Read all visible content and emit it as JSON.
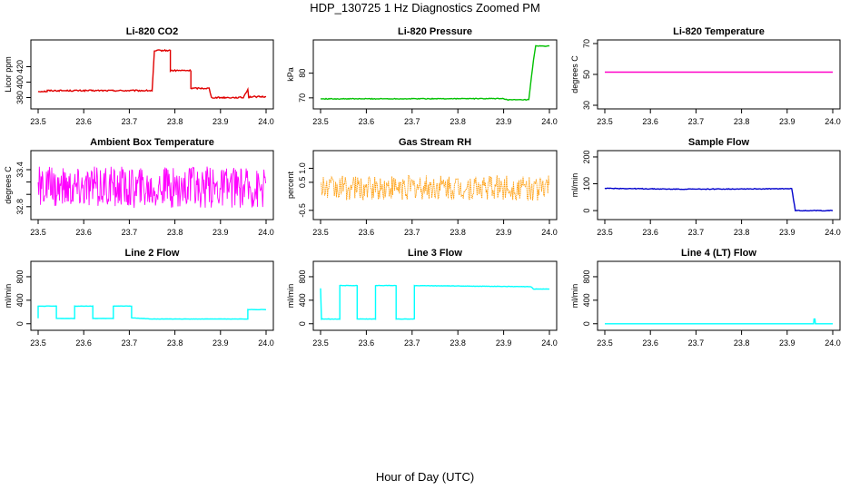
{
  "figure": {
    "title": "HDP_130725  1 Hz Diagnostics Zoomed PM",
    "xlabel": "Hour of Day (UTC)"
  },
  "chart_data": [
    {
      "type": "line",
      "title": "Li-820 CO2",
      "xlabel": "",
      "ylabel": "Licor ppm",
      "xlim": [
        23.5,
        24.0
      ],
      "ylim": [
        370,
        450
      ],
      "x_ticks": [
        "23.5",
        "23.6",
        "23.7",
        "23.8",
        "23.9",
        "24.0"
      ],
      "y_ticks": [
        "380",
        "400",
        "420"
      ],
      "y_tick_values": [
        380,
        400,
        420
      ],
      "grid": false,
      "series": [
        {
          "color": "#e00000",
          "noise": 0.9,
          "x": [
            23.5,
            23.52,
            23.52,
            23.75,
            23.755,
            23.765,
            23.78,
            23.79,
            23.79,
            23.835,
            23.835,
            23.875,
            23.88,
            23.95,
            23.96,
            23.962,
            23.965,
            24.0
          ],
          "y": [
            388,
            388,
            389,
            389,
            440,
            441,
            441,
            441,
            415,
            415,
            392,
            392,
            380,
            380,
            391,
            380,
            381,
            381
          ]
        }
      ]
    },
    {
      "type": "line",
      "title": "Li-820 Pressure",
      "xlabel": "",
      "ylabel": "kPa",
      "xlim": [
        23.5,
        24.0
      ],
      "ylim": [
        67,
        92
      ],
      "x_ticks": [
        "23.5",
        "23.6",
        "23.7",
        "23.8",
        "23.9",
        "24.0"
      ],
      "y_ticks": [
        "70",
        "80"
      ],
      "y_tick_values": [
        70,
        80
      ],
      "grid": false,
      "series": [
        {
          "color": "#00c000",
          "noise": 0.15,
          "x": [
            23.5,
            23.9,
            23.91,
            23.955,
            23.965,
            23.97,
            24.0
          ],
          "y": [
            69.6,
            69.7,
            69.2,
            69.2,
            85,
            91,
            91
          ]
        }
      ]
    },
    {
      "type": "line",
      "title": "Li-820 Temperature",
      "xlabel": "",
      "ylabel": "degrees C",
      "xlim": [
        23.5,
        24.0
      ],
      "ylim": [
        30,
        70
      ],
      "x_ticks": [
        "23.5",
        "23.6",
        "23.7",
        "23.8",
        "23.9",
        "24.0"
      ],
      "y_ticks": [
        "30",
        "50",
        "70"
      ],
      "y_tick_values": [
        30,
        50,
        70
      ],
      "grid": false,
      "series": [
        {
          "color": "#ff00c8",
          "noise": 0,
          "x": [
            23.5,
            24.0
          ],
          "y": [
            51.5,
            51.5
          ]
        }
      ]
    },
    {
      "type": "line",
      "title": "Ambient Box Temperature",
      "xlabel": "",
      "ylabel": "degrees C",
      "xlim": [
        23.5,
        24.0
      ],
      "ylim": [
        32.65,
        33.65
      ],
      "x_ticks": [
        "23.5",
        "23.6",
        "23.7",
        "23.8",
        "23.9",
        "24.0"
      ],
      "y_ticks": [
        "32.8",
        "33.0",
        "33.2",
        "33.4"
      ],
      "y_tick_values": [
        32.8,
        33.0,
        33.2,
        33.4
      ],
      "y_tick_labels_shown": [
        "32.8",
        "33.4"
      ],
      "grid": false,
      "series": [
        {
          "color": "#ff00ff",
          "noise_band": [
            32.78,
            33.45
          ],
          "step": 0.0013,
          "x": [
            23.5,
            24.0
          ],
          "y": [
            33.1,
            33.1
          ]
        }
      ]
    },
    {
      "type": "line",
      "title": "Gas Stream RH",
      "xlabel": "",
      "ylabel": "percent",
      "xlim": [
        23.5,
        24.0
      ],
      "ylim": [
        -0.7,
        1.5
      ],
      "x_ticks": [
        "23.5",
        "23.6",
        "23.7",
        "23.8",
        "23.9",
        "24.0"
      ],
      "y_ticks": [
        "-0.5",
        "0.5",
        "1.0"
      ],
      "y_tick_values": [
        -0.5,
        0.5,
        1.0
      ],
      "grid": false,
      "series": [
        {
          "color": "#ff9900",
          "noise_band": [
            -0.15,
            0.75
          ],
          "step": 0.0015,
          "dotted": true,
          "x": [
            23.5,
            24.0
          ],
          "y": [
            0.25,
            0.25
          ]
        }
      ]
    },
    {
      "type": "line",
      "title": "Sample Flow",
      "xlabel": "",
      "ylabel": "ml/min",
      "xlim": [
        23.5,
        24.0
      ],
      "ylim": [
        -20,
        210
      ],
      "x_ticks": [
        "23.5",
        "23.6",
        "23.7",
        "23.8",
        "23.9",
        "24.0"
      ],
      "y_ticks": [
        "0",
        "100",
        "200"
      ],
      "y_tick_values": [
        0,
        100,
        200
      ],
      "grid": false,
      "series": [
        {
          "color": "#0000cc",
          "noise": 1.3,
          "x": [
            23.5,
            23.56,
            23.6,
            23.65,
            23.72,
            23.8,
            23.86,
            23.91,
            23.918,
            24.0
          ],
          "y": [
            83,
            82,
            81,
            80,
            80,
            81,
            81,
            82,
            0,
            0
          ]
        }
      ]
    },
    {
      "type": "line",
      "title": "Line 2 Flow",
      "xlabel": "",
      "ylabel": "ml/min",
      "xlim": [
        23.5,
        24.0
      ],
      "ylim": [
        -50,
        1000
      ],
      "x_ticks": [
        "23.5",
        "23.6",
        "23.7",
        "23.8",
        "23.9",
        "24.0"
      ],
      "y_ticks": [
        "0",
        "400",
        "800"
      ],
      "y_tick_values": [
        0,
        400,
        800
      ],
      "grid": false,
      "series": [
        {
          "color": "#00ffff",
          "noise": 2,
          "x": [
            23.5,
            23.5,
            23.54,
            23.54,
            23.58,
            23.58,
            23.62,
            23.62,
            23.665,
            23.665,
            23.705,
            23.705,
            23.75,
            23.96,
            23.96,
            24.0
          ],
          "y": [
            90,
            300,
            300,
            90,
            90,
            300,
            300,
            90,
            90,
            300,
            300,
            100,
            80,
            80,
            240,
            240
          ]
        }
      ]
    },
    {
      "type": "line",
      "title": "Line 3 Flow",
      "xlabel": "",
      "ylabel": "ml/min",
      "xlim": [
        23.5,
        24.0
      ],
      "ylim": [
        -50,
        1000
      ],
      "x_ticks": [
        "23.5",
        "23.6",
        "23.7",
        "23.8",
        "23.9",
        "24.0"
      ],
      "y_ticks": [
        "0",
        "400",
        "800"
      ],
      "y_tick_values": [
        0,
        400,
        800
      ],
      "grid": false,
      "series": [
        {
          "color": "#00ffff",
          "noise": 3,
          "x": [
            23.5,
            23.5,
            23.502,
            23.542,
            23.542,
            23.58,
            23.58,
            23.62,
            23.62,
            23.665,
            23.665,
            23.705,
            23.705,
            23.96,
            23.965,
            24.0
          ],
          "y": [
            600,
            600,
            80,
            80,
            650,
            650,
            80,
            80,
            650,
            650,
            80,
            80,
            650,
            630,
            590,
            590
          ]
        }
      ]
    },
    {
      "type": "line",
      "title": "Line 4 (LT) Flow",
      "xlabel": "",
      "ylabel": "ml/min",
      "xlim": [
        23.5,
        24.0
      ],
      "ylim": [
        -50,
        1000
      ],
      "x_ticks": [
        "23.5",
        "23.6",
        "23.7",
        "23.8",
        "23.9",
        "24.0"
      ],
      "y_ticks": [
        "0",
        "400",
        "800"
      ],
      "y_tick_values": [
        0,
        400,
        800
      ],
      "grid": false,
      "series": [
        {
          "color": "#00ffff",
          "noise": 0,
          "x": [
            23.5,
            23.958,
            23.959,
            23.961,
            23.962,
            24.0
          ],
          "y": [
            0,
            0,
            80,
            80,
            0,
            0
          ]
        }
      ]
    }
  ]
}
